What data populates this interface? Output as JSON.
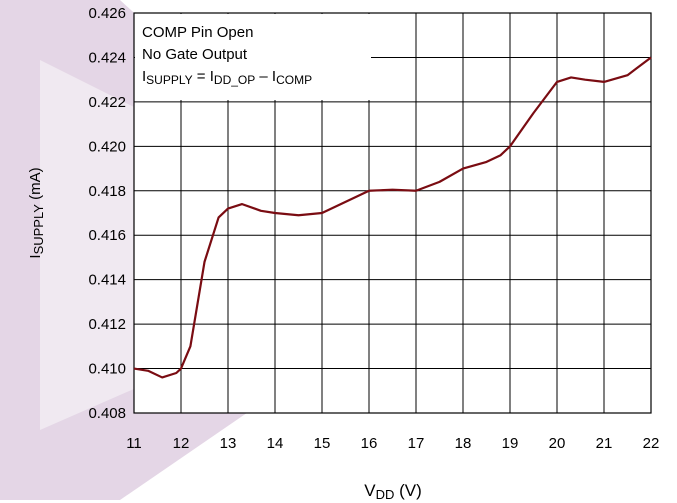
{
  "chart_data": {
    "type": "line",
    "annotations": [
      "COMP Pin Open",
      "No Gate Output"
    ],
    "formula": [
      "I",
      "SUPPLY",
      " = I",
      "DD_OP",
      " – I",
      "COMP"
    ],
    "y_label": [
      "I",
      "SUPPLY",
      " (mA)"
    ],
    "x_label": [
      "V",
      "DD",
      " (V)"
    ],
    "x": [
      11,
      11.3,
      11.6,
      11.9,
      12,
      12.2,
      12.5,
      12.8,
      13,
      13.3,
      13.7,
      14,
      14.5,
      15,
      15.5,
      16,
      16.5,
      17,
      17.5,
      18,
      18.5,
      18.8,
      19,
      19.5,
      20,
      20.3,
      20.6,
      21,
      21.5,
      22
    ],
    "series": [
      {
        "color": "#7a0c12",
        "values": [
          0.41,
          0.4099,
          0.4096,
          0.4098,
          0.41,
          0.411,
          0.4148,
          0.4168,
          0.4172,
          0.4174,
          0.4171,
          0.417,
          0.4169,
          0.417,
          0.4175,
          0.418,
          0.41805,
          0.418,
          0.4184,
          0.419,
          0.4193,
          0.4196,
          0.42,
          0.4215,
          0.4229,
          0.4231,
          0.423,
          0.4229,
          0.4232,
          0.424
        ]
      }
    ],
    "xlim": [
      11,
      22
    ],
    "xticks": [
      11,
      12,
      13,
      14,
      15,
      16,
      17,
      18,
      19,
      20,
      21,
      22
    ],
    "ylim": [
      0.408,
      0.426
    ],
    "yticks": [
      0.408,
      {
        "value": 0.41,
        "label": "0.410"
      },
      0.412,
      0.414,
      0.416,
      0.418,
      {
        "value": 0.42,
        "label": "0.420"
      },
      0.422,
      0.424,
      0.426
    ],
    "grid": true
  }
}
